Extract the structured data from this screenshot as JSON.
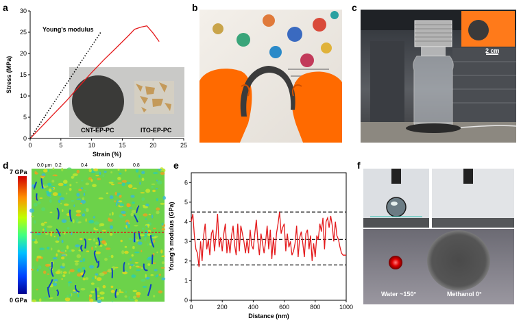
{
  "panels": {
    "a": "a",
    "b": "b",
    "c": "c",
    "d": "d",
    "e": "e",
    "f": "f"
  },
  "panel_a": {
    "annotation": "Young's modulus",
    "inset_left_label": "CNT-EP-PC",
    "inset_right_label": "ITO-EP-PC"
  },
  "panel_c": {
    "scale_label": "2 cm"
  },
  "panel_d": {
    "colorbar_max": "7 GPa",
    "colorbar_min": "0 GPa",
    "top_ticks": [
      "0.0 μm",
      "0.2",
      "0.4",
      "0.6",
      "0.8"
    ]
  },
  "panel_f": {
    "water_label": "Water ~150°",
    "methanol_label": "Methanol 0°"
  },
  "chart_data": [
    {
      "id": "a",
      "type": "line",
      "xlabel": "Strain (%)",
      "ylabel": "Stress (MPa)",
      "xlim": [
        0,
        25
      ],
      "ylim": [
        0,
        30
      ],
      "xticks": [
        0,
        5,
        10,
        15,
        20,
        25
      ],
      "yticks": [
        0,
        5,
        10,
        15,
        20,
        25,
        30
      ],
      "series": [
        {
          "color": "#e41a1c",
          "x": [
            0,
            1,
            2,
            3,
            4,
            5,
            6,
            8,
            10,
            12,
            14,
            16,
            17,
            18,
            19,
            20,
            21
          ],
          "y": [
            0,
            1.5,
            3.0,
            4.5,
            6.0,
            7.5,
            9.0,
            12.3,
            15.5,
            18.5,
            21.3,
            24.2,
            25.7,
            26.2,
            26.5,
            24.8,
            22.8
          ]
        },
        {
          "style": "dotted",
          "color": "#000000",
          "x": [
            0,
            11.5
          ],
          "y": [
            0,
            25
          ]
        }
      ]
    },
    {
      "id": "e",
      "type": "line",
      "xlabel": "Distance (nm)",
      "ylabel": "Young's modulus (GPa)",
      "xlim": [
        0,
        1000
      ],
      "ylim": [
        0,
        6.5
      ],
      "xticks": [
        0,
        200,
        400,
        600,
        800,
        1000
      ],
      "yticks": [
        0,
        1,
        2,
        3,
        4,
        5,
        6
      ],
      "hlines": [
        4.5,
        3.1,
        1.8
      ],
      "series": [
        {
          "color": "#e41a1c",
          "x": [
            0,
            10,
            20,
            30,
            40,
            50,
            60,
            70,
            80,
            90,
            100,
            110,
            120,
            130,
            140,
            150,
            160,
            170,
            180,
            190,
            200,
            210,
            220,
            230,
            240,
            250,
            260,
            270,
            280,
            290,
            300,
            310,
            320,
            330,
            340,
            350,
            360,
            370,
            380,
            390,
            400,
            410,
            420,
            430,
            440,
            450,
            460,
            470,
            480,
            490,
            500,
            510,
            520,
            530,
            540,
            550,
            560,
            570,
            580,
            590,
            600,
            610,
            620,
            630,
            640,
            650,
            660,
            670,
            680,
            690,
            700,
            710,
            720,
            730,
            740,
            750,
            760,
            770,
            780,
            790,
            800,
            810,
            820,
            830,
            840,
            850,
            860,
            870,
            880,
            890,
            900,
            910,
            920,
            930,
            940,
            950,
            960,
            970,
            980,
            990,
            1000
          ],
          "y": [
            4.0,
            4.4,
            3.3,
            2.6,
            2.4,
            1.7,
            3.0,
            2.0,
            3.3,
            3.9,
            2.6,
            3.1,
            2.3,
            3.4,
            3.6,
            2.5,
            3.4,
            4.4,
            2.7,
            3.2,
            2.5,
            3.4,
            3.9,
            2.4,
            3.1,
            2.4,
            3.3,
            3.8,
            2.8,
            2.3,
            3.9,
            2.5,
            3.8,
            3.4,
            3.0,
            2.4,
            3.1,
            2.4,
            3.6,
            2.8,
            2.6,
            3.4,
            4.1,
            3.0,
            2.3,
            3.4,
            2.9,
            2.4,
            3.0,
            3.8,
            2.6,
            3.6,
            2.1,
            3.2,
            2.3,
            3.4,
            3.9,
            4.5,
            3.4,
            3.7,
            3.9,
            2.5,
            3.4,
            2.7,
            3.0,
            2.3,
            2.5,
            2.9,
            3.8,
            2.2,
            3.2,
            3.5,
            2.9,
            2.2,
            3.4,
            3.6,
            2.6,
            3.3,
            2.0,
            2.9,
            2.2,
            3.3,
            3.1,
            3.9,
            3.5,
            4.2,
            2.6,
            4.0,
            4.2,
            3.7,
            4.3,
            3.8,
            3.0,
            4.0,
            3.3,
            3.1,
            2.7,
            2.4,
            2.3,
            2.3,
            2.3
          ]
        }
      ]
    }
  ]
}
